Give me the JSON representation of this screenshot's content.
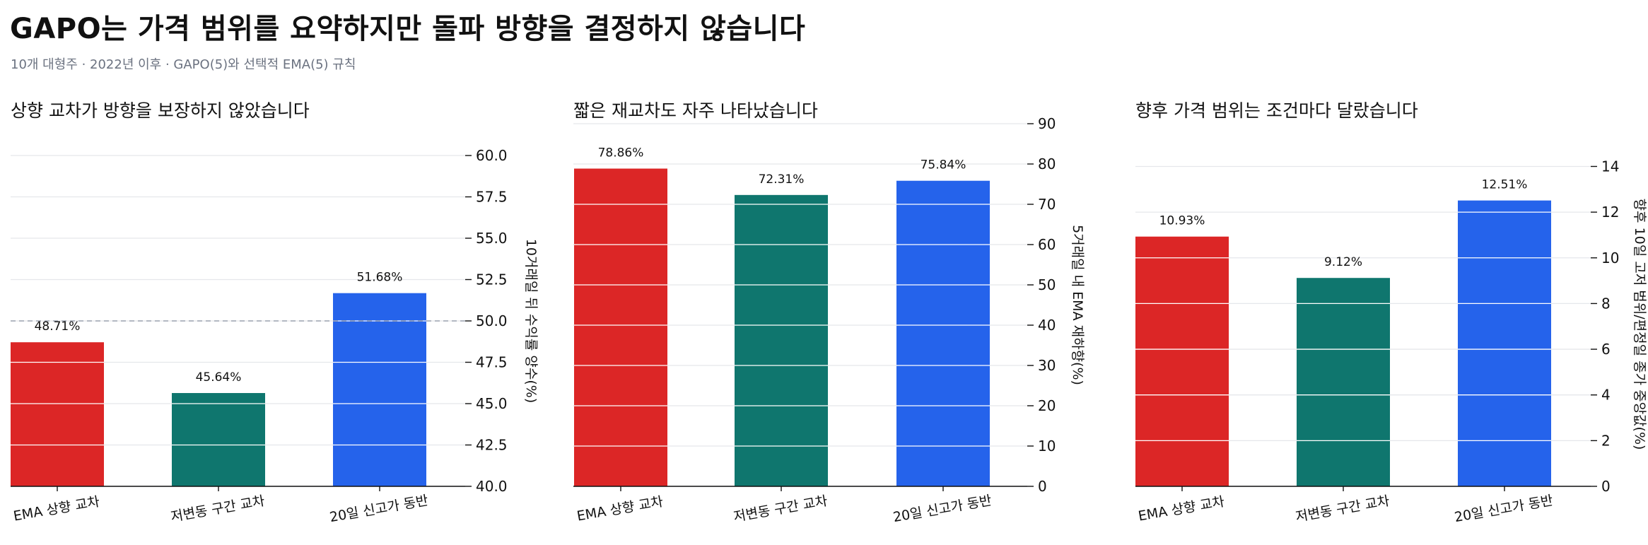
{
  "title": "GAPO는 가격 범위를 요약하지만 돌파 방향을 결정하지 않습니다",
  "subtitle": "10개 대형주 · 2022년 이후 · GAPO(5)와 선택적 EMA(5) 규칙",
  "chart_data": [
    {
      "type": "bar",
      "title": "상향 교차가 방향을 보장하지 않았습니다",
      "categories": [
        "EMA 상향 교차",
        "저변동 구간 교차",
        "20일 신고가 동반"
      ],
      "values": [
        48.71,
        45.64,
        51.68
      ],
      "value_labels": [
        "48.71%",
        "45.64%",
        "51.68%"
      ],
      "ylabel": "10거래일 뒤 수익률 양수(%)",
      "ylim": [
        40,
        60
      ],
      "yticks": [
        40.0,
        42.5,
        45.0,
        47.5,
        50.0,
        52.5,
        55.0,
        57.5,
        60.0
      ],
      "ytick_labels": [
        "40.0",
        "42.5",
        "45.0",
        "47.5",
        "50.0",
        "52.5",
        "55.0",
        "57.5",
        "60.0"
      ],
      "reference_line": 50,
      "y_axis": "right",
      "grid": true
    },
    {
      "type": "bar",
      "title": "짧은 재교차도 자주 나타났습니다",
      "categories": [
        "EMA 상향 교차",
        "저변동 구간 교차",
        "20일 신고가 동반"
      ],
      "values": [
        78.86,
        72.31,
        75.84
      ],
      "value_labels": [
        "78.86%",
        "72.31%",
        "75.84%"
      ],
      "ylabel": "5거래일 내 EMA 재하향(%)",
      "ylim": [
        0,
        90
      ],
      "yticks": [
        0,
        10,
        20,
        30,
        40,
        50,
        60,
        70,
        80,
        90
      ],
      "ytick_labels": [
        "0",
        "10",
        "20",
        "30",
        "40",
        "50",
        "60",
        "70",
        "80",
        "90"
      ],
      "y_axis": "right",
      "grid": true
    },
    {
      "type": "bar",
      "title": "향후 가격 범위는 조건마다 달랐습니다",
      "categories": [
        "EMA 상향 교차",
        "저변동 구간 교차",
        "20일 신고가 동반"
      ],
      "values": [
        10.93,
        9.12,
        12.51
      ],
      "value_labels": [
        "10.93%",
        "9.12%",
        "12.51%"
      ],
      "ylabel": "향후 10일 고저 범위/편정일 종가 중앙값(%)",
      "ylim": [
        0,
        14.2
      ],
      "yticks": [
        0,
        2,
        4,
        6,
        8,
        10,
        12,
        14
      ],
      "ytick_labels": [
        "0",
        "2",
        "4",
        "6",
        "8",
        "10",
        "12",
        "14"
      ],
      "y_axis": "right",
      "grid": true
    }
  ],
  "colors": {
    "bars": [
      "#dc2626",
      "#0f766e",
      "#2563eb"
    ],
    "grid": "#e5e7eb",
    "reference_line": "#9ca3af",
    "subtitle": "#6b7280"
  }
}
